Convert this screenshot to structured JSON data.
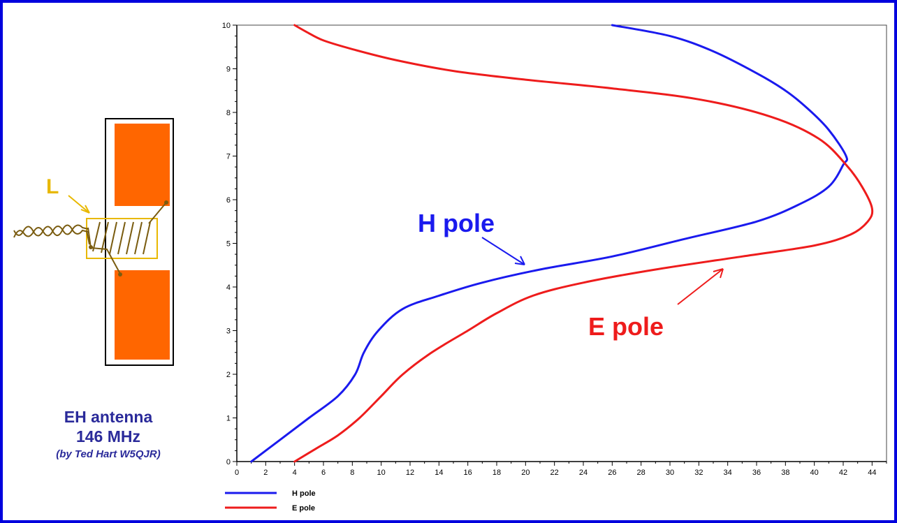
{
  "caption": {
    "line1": "EH antenna",
    "line2": "146 MHz",
    "line3": "(by Ted Hart  W5QJR)"
  },
  "antenna": {
    "coil_label": "L",
    "plate_color": "#ff6600",
    "coil_color": "#e8b800",
    "wire_color": "#7a5c10"
  },
  "colors": {
    "frame": "#0000dd",
    "h_pole": "#1a1aee",
    "e_pole": "#ee1c1c"
  },
  "chart_data": {
    "type": "line",
    "title": "",
    "xlabel": "",
    "ylabel": "",
    "xlim": [
      0,
      45
    ],
    "ylim": [
      0,
      10
    ],
    "x_ticks": [
      0,
      2,
      4,
      6,
      8,
      10,
      12,
      14,
      16,
      18,
      20,
      22,
      24,
      26,
      28,
      30,
      32,
      34,
      36,
      38,
      40,
      42,
      44
    ],
    "y_ticks": [
      0,
      1,
      2,
      3,
      4,
      5,
      6,
      7,
      8,
      9,
      10
    ],
    "grid": false,
    "legend_position": "bottom-left",
    "series": [
      {
        "name": "H pole",
        "color": "#1a1aee",
        "points": [
          [
            1,
            0
          ],
          [
            3,
            0.5
          ],
          [
            5,
            1.0
          ],
          [
            7,
            1.5
          ],
          [
            8.2,
            2.0
          ],
          [
            8.8,
            2.5
          ],
          [
            9.8,
            3.0
          ],
          [
            11.5,
            3.5
          ],
          [
            14,
            3.8
          ],
          [
            17,
            4.1
          ],
          [
            21,
            4.4
          ],
          [
            26,
            4.7
          ],
          [
            31,
            5.1
          ],
          [
            36,
            5.5
          ],
          [
            39,
            5.9
          ],
          [
            41,
            6.3
          ],
          [
            42,
            6.8
          ],
          [
            42.2,
            7.0
          ],
          [
            41,
            7.6
          ],
          [
            39.5,
            8.1
          ],
          [
            38,
            8.5
          ],
          [
            36,
            8.9
          ],
          [
            33,
            9.4
          ],
          [
            30,
            9.75
          ],
          [
            26,
            10
          ]
        ]
      },
      {
        "name": "E pole",
        "color": "#ee1c1c",
        "points": [
          [
            4,
            0
          ],
          [
            5.5,
            0.3
          ],
          [
            7,
            0.6
          ],
          [
            8.5,
            1.0
          ],
          [
            10,
            1.5
          ],
          [
            11.5,
            2.0
          ],
          [
            13.5,
            2.5
          ],
          [
            16,
            3.0
          ],
          [
            18,
            3.4
          ],
          [
            20.5,
            3.8
          ],
          [
            24,
            4.1
          ],
          [
            29,
            4.4
          ],
          [
            35,
            4.7
          ],
          [
            40,
            4.95
          ],
          [
            42.5,
            5.2
          ],
          [
            43.7,
            5.5
          ],
          [
            44,
            5.8
          ],
          [
            43.3,
            6.3
          ],
          [
            42.2,
            6.8
          ],
          [
            40.3,
            7.4
          ],
          [
            37,
            7.9
          ],
          [
            32,
            8.3
          ],
          [
            26,
            8.55
          ],
          [
            20,
            8.75
          ],
          [
            15,
            8.95
          ],
          [
            11,
            9.2
          ],
          [
            8,
            9.45
          ],
          [
            6,
            9.65
          ],
          [
            4.8,
            9.85
          ],
          [
            4,
            10
          ]
        ]
      }
    ],
    "annotations": [
      {
        "text": "H pole",
        "color": "#1a1aee"
      },
      {
        "text": "E pole",
        "color": "#ee1c1c"
      }
    ]
  }
}
